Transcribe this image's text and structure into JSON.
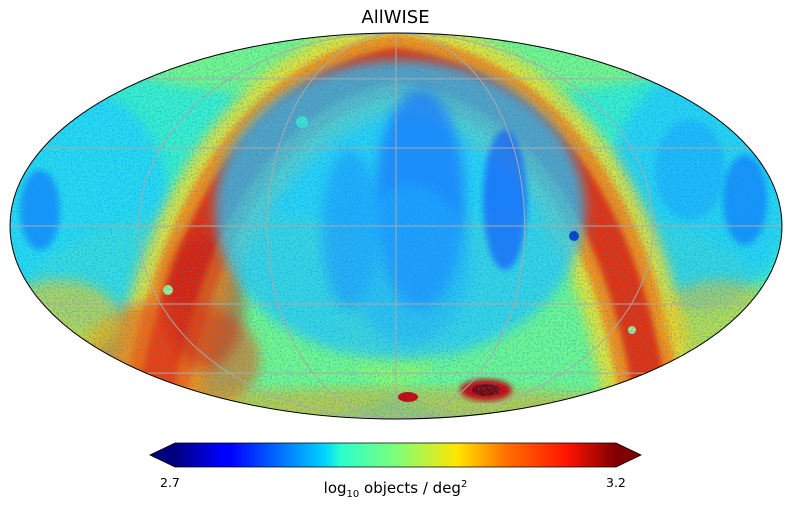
{
  "title": "AllWISE",
  "projection": "mollweide",
  "colormap": "jet",
  "colorbar": {
    "min": 2.7,
    "max": 3.2,
    "min_label": "2.7",
    "max_label": "3.2",
    "label_prefix": "log",
    "label_sub": "10",
    "label_mid": " objects / deg",
    "label_sup": "2",
    "extend": "both"
  },
  "grid": true,
  "grid_color": "#aaaaaa",
  "features": {
    "background_level": "cyan-green, about 2.9",
    "galactic_plane_band": "red-orange arc, about 3.1-3.2",
    "low_density_regions": "blue patches, about 2.75-2.8",
    "magellanic_clouds": "red spots near bottom center"
  }
}
